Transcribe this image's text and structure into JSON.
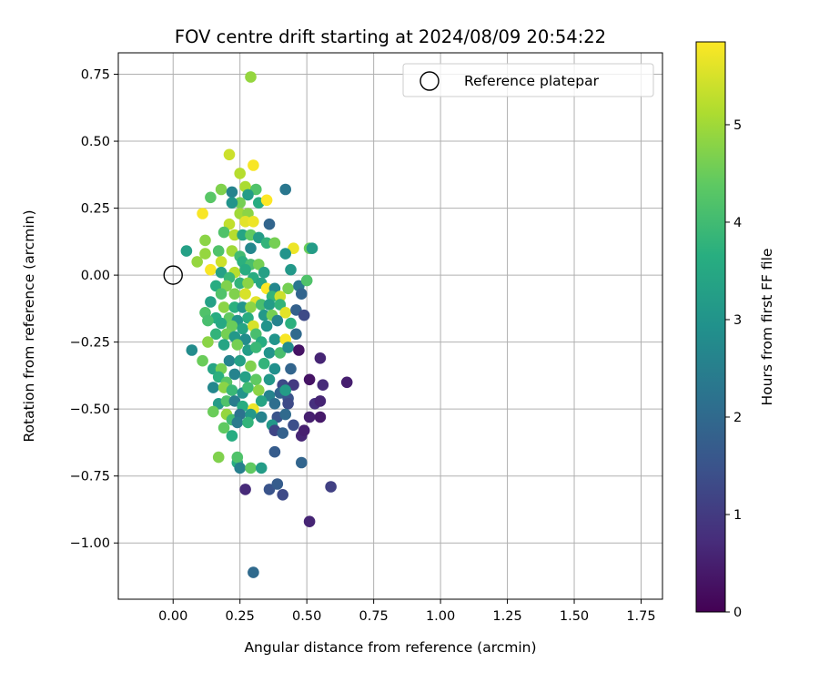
{
  "chart_data": {
    "type": "scatter",
    "title": "FOV centre drift starting at 2024/08/09 20:54:22",
    "xlabel": "Angular distance from reference (arcmin)",
    "ylabel": "Rotation from reference (arcmin)",
    "xlim": [
      -0.205,
      1.83
    ],
    "ylim": [
      -1.21,
      0.83
    ],
    "xticks": [
      0,
      0.25,
      0.5,
      0.75,
      1.0,
      1.25,
      1.5,
      1.75
    ],
    "xtick_labels": [
      "0.00",
      "0.25",
      "0.50",
      "0.75",
      "1.00",
      "1.25",
      "1.50",
      "1.75"
    ],
    "yticks": [
      0.75,
      0.5,
      0.25,
      0.0,
      -0.25,
      -0.5,
      -0.75,
      -1.0
    ],
    "ytick_labels": [
      "0.75",
      "0.50",
      "0.25",
      "0.00",
      "−0.25",
      "−0.50",
      "−0.75",
      "−1.00"
    ],
    "grid": true,
    "colormap": "viridis",
    "colorbar": {
      "label": "Hours from first FF file",
      "min": 0,
      "max": 5.85,
      "ticks": [
        0,
        1,
        2,
        3,
        4,
        5
      ],
      "tick_labels": [
        "0",
        "1",
        "2",
        "3",
        "4",
        "5"
      ]
    },
    "legend": {
      "position": "top-right",
      "label": "Reference platepar"
    },
    "reference": {
      "x": 0.0,
      "y": 0.0
    },
    "points": [
      [
        0.29,
        0.74,
        4.9
      ],
      [
        0.21,
        0.45,
        5.4
      ],
      [
        0.3,
        0.41,
        5.8
      ],
      [
        0.25,
        0.38,
        5.2
      ],
      [
        0.18,
        0.32,
        4.7
      ],
      [
        0.22,
        0.31,
        2.6
      ],
      [
        0.27,
        0.33,
        5.1
      ],
      [
        0.31,
        0.32,
        4.2
      ],
      [
        0.42,
        0.32,
        2.3
      ],
      [
        0.14,
        0.29,
        4.3
      ],
      [
        0.28,
        0.3,
        3.2
      ],
      [
        0.25,
        0.27,
        4.6
      ],
      [
        0.22,
        0.27,
        3.0
      ],
      [
        0.32,
        0.27,
        3.6
      ],
      [
        0.35,
        0.28,
        5.9
      ],
      [
        0.11,
        0.23,
        5.8
      ],
      [
        0.25,
        0.23,
        5.0
      ],
      [
        0.28,
        0.23,
        4.8
      ],
      [
        0.21,
        0.19,
        5.3
      ],
      [
        0.27,
        0.2,
        5.6
      ],
      [
        0.3,
        0.2,
        5.7
      ],
      [
        0.36,
        0.19,
        1.9
      ],
      [
        0.19,
        0.16,
        4.2
      ],
      [
        0.23,
        0.15,
        5.2
      ],
      [
        0.26,
        0.15,
        3.4
      ],
      [
        0.29,
        0.15,
        4.4
      ],
      [
        0.32,
        0.14,
        3.2
      ],
      [
        0.12,
        0.13,
        4.8
      ],
      [
        0.35,
        0.12,
        3.8
      ],
      [
        0.38,
        0.12,
        4.6
      ],
      [
        0.05,
        0.09,
        3.3
      ],
      [
        0.17,
        0.09,
        4.2
      ],
      [
        0.22,
        0.09,
        5.0
      ],
      [
        0.29,
        0.1,
        2.7
      ],
      [
        0.45,
        0.1,
        5.7
      ],
      [
        0.51,
        0.1,
        4.5
      ],
      [
        0.52,
        0.1,
        3.2
      ],
      [
        0.12,
        0.08,
        4.9
      ],
      [
        0.25,
        0.07,
        4.0
      ],
      [
        0.42,
        0.08,
        3.0
      ],
      [
        0.09,
        0.05,
        4.9
      ],
      [
        0.18,
        0.05,
        5.4
      ],
      [
        0.26,
        0.05,
        3.7
      ],
      [
        0.29,
        0.04,
        4.1
      ],
      [
        0.32,
        0.04,
        4.6
      ],
      [
        0.14,
        0.02,
        5.8
      ],
      [
        0.18,
        0.01,
        3.3
      ],
      [
        0.23,
        0.01,
        5.2
      ],
      [
        0.27,
        0.02,
        3.6
      ],
      [
        0.34,
        0.01,
        3.3
      ],
      [
        0.44,
        0.02,
        3.1
      ],
      [
        0.21,
        -0.01,
        3.9
      ],
      [
        0.3,
        -0.01,
        3.6
      ],
      [
        0.16,
        -0.04,
        3.6
      ],
      [
        0.2,
        -0.04,
        4.7
      ],
      [
        0.25,
        -0.03,
        3.8
      ],
      [
        0.28,
        -0.03,
        4.8
      ],
      [
        0.33,
        -0.03,
        3.4
      ],
      [
        0.35,
        -0.05,
        5.9
      ],
      [
        0.38,
        -0.05,
        2.7
      ],
      [
        0.43,
        -0.05,
        4.6
      ],
      [
        0.47,
        -0.04,
        2.3
      ],
      [
        0.5,
        -0.02,
        4.2
      ],
      [
        0.14,
        -0.1,
        3.3
      ],
      [
        0.18,
        -0.07,
        4.2
      ],
      [
        0.23,
        -0.07,
        4.7
      ],
      [
        0.27,
        -0.07,
        5.5
      ],
      [
        0.31,
        -0.1,
        5.6
      ],
      [
        0.37,
        -0.08,
        3.8
      ],
      [
        0.4,
        -0.08,
        5.4
      ],
      [
        0.48,
        -0.07,
        1.9
      ],
      [
        0.19,
        -0.12,
        4.8
      ],
      [
        0.23,
        -0.12,
        3.7
      ],
      [
        0.26,
        -0.12,
        3.0
      ],
      [
        0.29,
        -0.12,
        4.8
      ],
      [
        0.33,
        -0.11,
        4.1
      ],
      [
        0.36,
        -0.11,
        3.2
      ],
      [
        0.4,
        -0.11,
        3.8
      ],
      [
        0.12,
        -0.14,
        4.2
      ],
      [
        0.16,
        -0.16,
        3.6
      ],
      [
        0.21,
        -0.16,
        4.4
      ],
      [
        0.24,
        -0.17,
        3.0
      ],
      [
        0.28,
        -0.16,
        3.6
      ],
      [
        0.34,
        -0.15,
        3.1
      ],
      [
        0.37,
        -0.15,
        4.6
      ],
      [
        0.42,
        -0.14,
        5.6
      ],
      [
        0.46,
        -0.13,
        1.8
      ],
      [
        0.13,
        -0.17,
        4.1
      ],
      [
        0.18,
        -0.18,
        3.5
      ],
      [
        0.22,
        -0.19,
        4.5
      ],
      [
        0.26,
        -0.2,
        3.4
      ],
      [
        0.3,
        -0.19,
        5.5
      ],
      [
        0.35,
        -0.19,
        3.0
      ],
      [
        0.39,
        -0.17,
        2.6
      ],
      [
        0.44,
        -0.18,
        3.7
      ],
      [
        0.49,
        -0.15,
        1.3
      ],
      [
        0.16,
        -0.22,
        3.8
      ],
      [
        0.2,
        -0.22,
        4.6
      ],
      [
        0.23,
        -0.23,
        3.1
      ],
      [
        0.27,
        -0.24,
        2.8
      ],
      [
        0.31,
        -0.22,
        4.1
      ],
      [
        0.33,
        -0.25,
        3.6
      ],
      [
        0.38,
        -0.24,
        3.0
      ],
      [
        0.42,
        -0.24,
        5.8
      ],
      [
        0.46,
        -0.22,
        2.0
      ],
      [
        0.07,
        -0.28,
        2.8
      ],
      [
        0.13,
        -0.25,
        4.8
      ],
      [
        0.19,
        -0.26,
        3.4
      ],
      [
        0.24,
        -0.26,
        4.6
      ],
      [
        0.28,
        -0.28,
        3.2
      ],
      [
        0.31,
        -0.27,
        3.9
      ],
      [
        0.36,
        -0.29,
        3.0
      ],
      [
        0.4,
        -0.29,
        4.1
      ],
      [
        0.43,
        -0.27,
        2.8
      ],
      [
        0.47,
        -0.28,
        0.3
      ],
      [
        0.55,
        -0.31,
        0.6
      ],
      [
        0.11,
        -0.32,
        4.5
      ],
      [
        0.15,
        -0.35,
        3.4
      ],
      [
        0.18,
        -0.35,
        4.6
      ],
      [
        0.21,
        -0.32,
        2.6
      ],
      [
        0.25,
        -0.32,
        3.3
      ],
      [
        0.29,
        -0.34,
        4.7
      ],
      [
        0.34,
        -0.33,
        3.8
      ],
      [
        0.38,
        -0.35,
        2.9
      ],
      [
        0.44,
        -0.35,
        1.9
      ],
      [
        0.17,
        -0.38,
        3.7
      ],
      [
        0.2,
        -0.4,
        4.3
      ],
      [
        0.23,
        -0.37,
        2.6
      ],
      [
        0.27,
        -0.38,
        3.3
      ],
      [
        0.31,
        -0.39,
        4.4
      ],
      [
        0.36,
        -0.39,
        3.1
      ],
      [
        0.41,
        -0.41,
        1.3
      ],
      [
        0.45,
        -0.41,
        1.0
      ],
      [
        0.51,
        -0.39,
        0.3
      ],
      [
        0.56,
        -0.41,
        0.7
      ],
      [
        0.65,
        -0.4,
        0.5
      ],
      [
        0.15,
        -0.42,
        2.7
      ],
      [
        0.19,
        -0.42,
        4.8
      ],
      [
        0.22,
        -0.43,
        3.9
      ],
      [
        0.26,
        -0.44,
        3.0
      ],
      [
        0.28,
        -0.42,
        4.0
      ],
      [
        0.32,
        -0.43,
        4.8
      ],
      [
        0.36,
        -0.45,
        2.6
      ],
      [
        0.4,
        -0.44,
        1.9
      ],
      [
        0.43,
        -0.46,
        1.5
      ],
      [
        0.42,
        -0.43,
        3.2
      ],
      [
        0.17,
        -0.48,
        3.2
      ],
      [
        0.2,
        -0.47,
        4.2
      ],
      [
        0.23,
        -0.47,
        2.4
      ],
      [
        0.26,
        -0.49,
        3.6
      ],
      [
        0.3,
        -0.5,
        5.7
      ],
      [
        0.33,
        -0.47,
        3.4
      ],
      [
        0.38,
        -0.48,
        2.1
      ],
      [
        0.43,
        -0.48,
        1.3
      ],
      [
        0.53,
        -0.48,
        0.8
      ],
      [
        0.55,
        -0.47,
        0.6
      ],
      [
        0.15,
        -0.51,
        4.5
      ],
      [
        0.2,
        -0.52,
        4.9
      ],
      [
        0.22,
        -0.54,
        4.0
      ],
      [
        0.25,
        -0.52,
        2.2
      ],
      [
        0.29,
        -0.52,
        3.1
      ],
      [
        0.33,
        -0.53,
        2.6
      ],
      [
        0.39,
        -0.53,
        1.5
      ],
      [
        0.42,
        -0.52,
        2.0
      ],
      [
        0.45,
        -0.56,
        1.4
      ],
      [
        0.51,
        -0.53,
        0.5
      ],
      [
        0.55,
        -0.53,
        0.4
      ],
      [
        0.19,
        -0.57,
        4.4
      ],
      [
        0.22,
        -0.6,
        3.6
      ],
      [
        0.24,
        -0.55,
        2.4
      ],
      [
        0.28,
        -0.55,
        3.8
      ],
      [
        0.37,
        -0.56,
        3.1
      ],
      [
        0.38,
        -0.58,
        1.2
      ],
      [
        0.41,
        -0.59,
        1.8
      ],
      [
        0.48,
        -0.6,
        0.6
      ],
      [
        0.49,
        -0.58,
        0.5
      ],
      [
        0.17,
        -0.68,
        4.7
      ],
      [
        0.24,
        -0.7,
        3.6
      ],
      [
        0.24,
        -0.68,
        4.2
      ],
      [
        0.25,
        -0.72,
        2.5
      ],
      [
        0.29,
        -0.72,
        4.4
      ],
      [
        0.33,
        -0.72,
        3.2
      ],
      [
        0.38,
        -0.66,
        1.7
      ],
      [
        0.48,
        -0.7,
        1.9
      ],
      [
        0.27,
        -0.8,
        0.7
      ],
      [
        0.36,
        -0.8,
        1.5
      ],
      [
        0.39,
        -0.78,
        1.7
      ],
      [
        0.41,
        -0.82,
        1.3
      ],
      [
        0.59,
        -0.79,
        1.1
      ],
      [
        0.51,
        -0.92,
        0.6
      ],
      [
        0.3,
        -1.11,
        2.0
      ]
    ]
  }
}
